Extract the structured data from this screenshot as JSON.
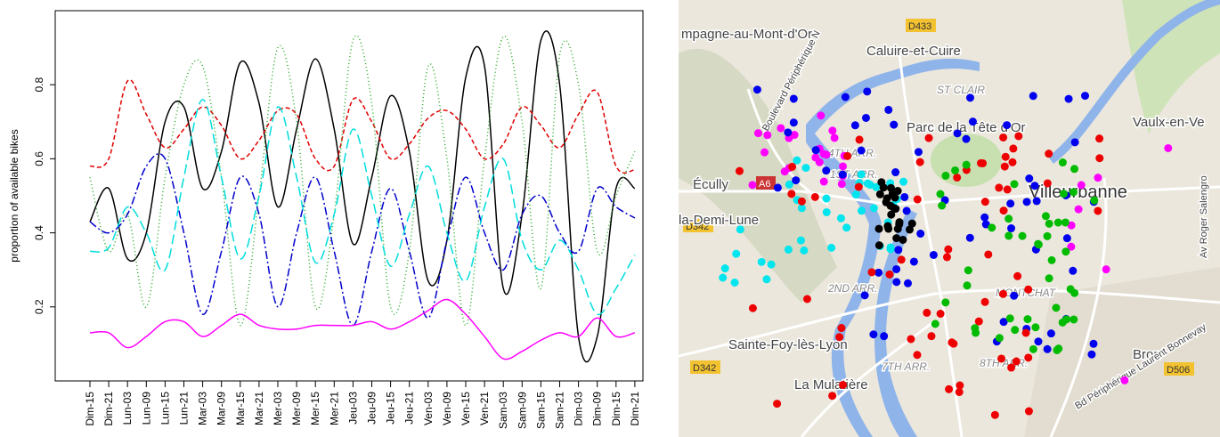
{
  "chart_data": {
    "type": "line",
    "y_label": "proportion of available bikes",
    "categories": [
      "Dim-15",
      "Dim-21",
      "Lun-03",
      "Lun-09",
      "Lun-15",
      "Lun-21",
      "Mar-03",
      "Mar-09",
      "Mar-15",
      "Mar-21",
      "Mer-03",
      "Mer-09",
      "Mer-15",
      "Mer-21",
      "Jeu-03",
      "Jeu-09",
      "Jeu-15",
      "Jeu-21",
      "Ven-03",
      "Ven-09",
      "Ven-15",
      "Ven-21",
      "Sam-03",
      "Sam-09",
      "Sam-15",
      "Sam-21",
      "Dim-03",
      "Dim-09",
      "Dim-15",
      "Dim-21"
    ],
    "ylim": [
      0,
      1
    ],
    "yticks": [
      0.2,
      0.4,
      0.6,
      0.8
    ],
    "series": [
      {
        "color": "#000000",
        "values": [
          0.43,
          0.52,
          0.33,
          0.4,
          0.7,
          0.74,
          0.52,
          0.62,
          0.86,
          0.75,
          0.47,
          0.68,
          0.87,
          0.68,
          0.37,
          0.55,
          0.77,
          0.62,
          0.27,
          0.38,
          0.82,
          0.85,
          0.25,
          0.45,
          0.92,
          0.8,
          0.12,
          0.12,
          0.52,
          0.52
        ]
      },
      {
        "color": "#e00000",
        "values": [
          0.58,
          0.6,
          0.81,
          0.72,
          0.63,
          0.68,
          0.74,
          0.69,
          0.6,
          0.65,
          0.73,
          0.72,
          0.6,
          0.58,
          0.76,
          0.7,
          0.6,
          0.64,
          0.71,
          0.73,
          0.68,
          0.6,
          0.64,
          0.74,
          0.69,
          0.63,
          0.72,
          0.78,
          0.58,
          0.57
        ]
      },
      {
        "color": "#22aa22",
        "values": [
          0.55,
          0.35,
          0.45,
          0.2,
          0.55,
          0.8,
          0.85,
          0.55,
          0.15,
          0.5,
          0.9,
          0.7,
          0.2,
          0.45,
          0.92,
          0.75,
          0.2,
          0.35,
          0.85,
          0.6,
          0.15,
          0.6,
          0.93,
          0.7,
          0.25,
          0.88,
          0.8,
          0.35,
          0.5,
          0.62
        ]
      },
      {
        "color": "#0000cc",
        "values": [
          0.43,
          0.4,
          0.45,
          0.58,
          0.6,
          0.4,
          0.18,
          0.35,
          0.55,
          0.45,
          0.2,
          0.4,
          0.55,
          0.35,
          0.15,
          0.35,
          0.52,
          0.35,
          0.17,
          0.38,
          0.55,
          0.4,
          0.3,
          0.45,
          0.5,
          0.4,
          0.35,
          0.52,
          0.47,
          0.44
        ]
      },
      {
        "color": "#00dddd",
        "values": [
          0.35,
          0.36,
          0.47,
          0.4,
          0.3,
          0.55,
          0.76,
          0.55,
          0.33,
          0.5,
          0.74,
          0.55,
          0.32,
          0.45,
          0.68,
          0.5,
          0.31,
          0.45,
          0.58,
          0.4,
          0.27,
          0.47,
          0.6,
          0.38,
          0.3,
          0.38,
          0.3,
          0.18,
          0.25,
          0.34
        ]
      },
      {
        "color": "#ff00ff",
        "values": [
          0.13,
          0.13,
          0.09,
          0.12,
          0.16,
          0.16,
          0.12,
          0.15,
          0.18,
          0.15,
          0.14,
          0.14,
          0.15,
          0.15,
          0.15,
          0.16,
          0.14,
          0.16,
          0.19,
          0.22,
          0.18,
          0.12,
          0.06,
          0.08,
          0.11,
          0.13,
          0.12,
          0.17,
          0.12,
          0.13
        ]
      }
    ]
  },
  "map": {
    "labels": [
      "mpagne-au-Mont-d'Or",
      "Caluire-et-Cuire",
      "D433",
      "ST CLAIR",
      "Parc de la Tête d'Or",
      "4TH ARR.",
      "1ST ARR.",
      "Villeurbanne",
      "Vaulx-en-Ve",
      "Écully",
      "D342",
      "A6",
      "la-Demi-Lune",
      "MONTCHAT",
      "2ND ARR.",
      "Sainte-Foy-lès-Lyon",
      "D342",
      "7TH ARR.",
      "8TH ARR.",
      "La Mulatière",
      "Bron",
      "D506",
      "Boulevard Périphérique N",
      "Bd Périphérique Laurent Bonnevay",
      "Av Roger Salengro"
    ]
  }
}
